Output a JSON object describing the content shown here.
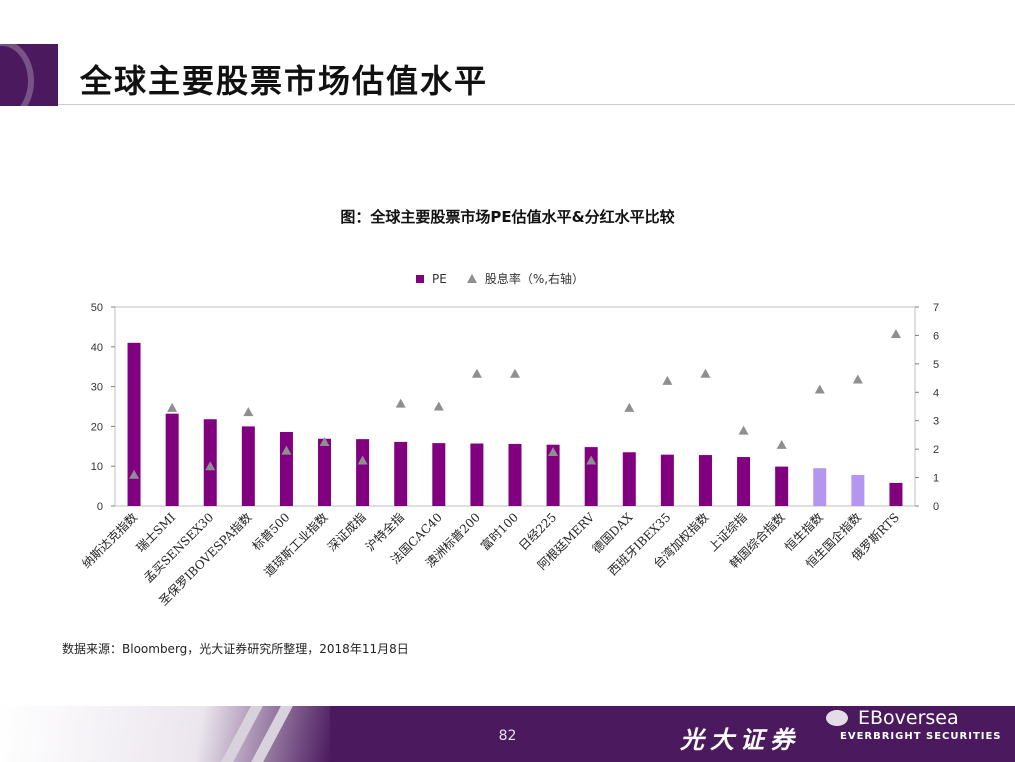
{
  "page": {
    "title": "全球主要股票市场估值水平",
    "source": "数据来源：Bloomberg，光大证券研究所整理，2018年11月8日",
    "page_number": "82",
    "brand_cn": "光大证券",
    "brand_en": "EVERBRIGHT SECURITIES",
    "watermark": "EBoversea"
  },
  "colors": {
    "bar": "#800080",
    "bar_highlight": "#b496f0",
    "marker": "#8f8f8f",
    "brand": "#4b1a5e"
  },
  "chart_data": {
    "type": "bar",
    "title": "图：全球主要股票市场PE估值水平&分红水平比较",
    "legend": [
      "PE",
      "股息率（%,右轴）"
    ],
    "categories": [
      "纳斯达克指数",
      "瑞士SMI",
      "孟买SENSEX30",
      "圣保罗IBOVESPA指数",
      "标普500",
      "道琼斯工业指数",
      "深证成指",
      "沪特全指",
      "法国CAC40",
      "澳洲标普200",
      "富时100",
      "日经225",
      "阿根廷MERV",
      "德国DAX",
      "西班牙IBEX35",
      "台湾加权指数",
      "上证综指",
      "韩国综合指数",
      "恒生指数",
      "恒生国企指数",
      "俄罗斯RTS"
    ],
    "highlight_categories": [
      "恒生指数",
      "恒生国企指数"
    ],
    "series": [
      {
        "name": "PE",
        "axis": "left",
        "type": "bar",
        "values": [
          41,
          23.2,
          21.8,
          20,
          18.6,
          16.9,
          16.8,
          16.1,
          15.8,
          15.7,
          15.6,
          15.4,
          14.8,
          13.5,
          12.9,
          12.8,
          12.3,
          9.9,
          9.5,
          7.8,
          5.8
        ]
      },
      {
        "name": "股息率（%,右轴）",
        "axis": "right",
        "type": "scatter",
        "values": [
          1.1,
          3.45,
          1.4,
          3.3,
          1.95,
          2.25,
          1.6,
          3.6,
          3.5,
          4.65,
          4.65,
          1.9,
          1.6,
          3.45,
          4.4,
          4.65,
          2.65,
          2.15,
          4.1,
          4.45,
          6.05
        ]
      }
    ],
    "y_left": {
      "min": 0,
      "max": 50,
      "ticks": [
        0,
        10,
        20,
        30,
        40,
        50
      ]
    },
    "y_right": {
      "min": 0,
      "max": 7,
      "ticks": [
        0,
        1,
        2,
        3,
        4,
        5,
        6,
        7
      ]
    }
  }
}
